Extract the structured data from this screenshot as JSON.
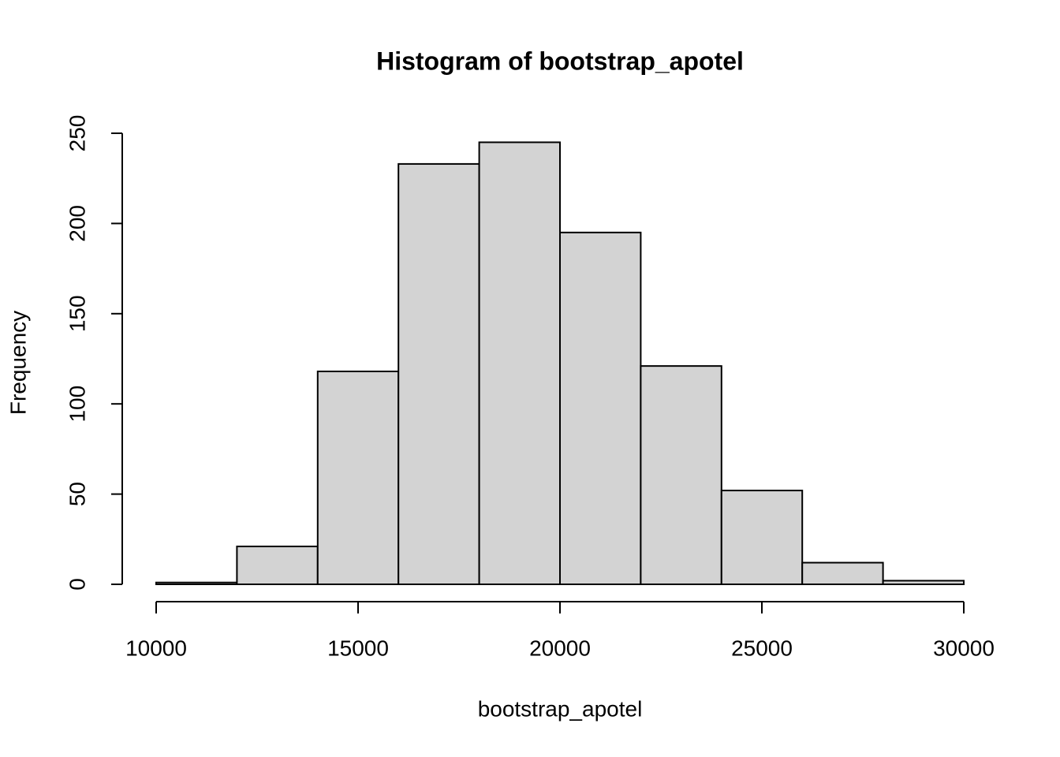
{
  "chart_data": {
    "type": "histogram",
    "title": "Histogram of bootstrap_apotel",
    "x_label": "bootstrap_apotel",
    "y_label": "Frequency",
    "bins": [
      10000,
      12000,
      14000,
      16000,
      18000,
      20000,
      22000,
      24000,
      26000,
      28000,
      30000
    ],
    "values": [
      1,
      21,
      118,
      233,
      245,
      195,
      121,
      52,
      12,
      2
    ],
    "color": "#d3d3d3",
    "xlim": [
      10000,
      30000
    ],
    "xticks": [
      10000,
      15000,
      20000,
      25000,
      30000
    ],
    "ylim": [
      0,
      250
    ],
    "yticks": [
      0,
      50,
      100,
      150,
      200,
      250
    ]
  }
}
